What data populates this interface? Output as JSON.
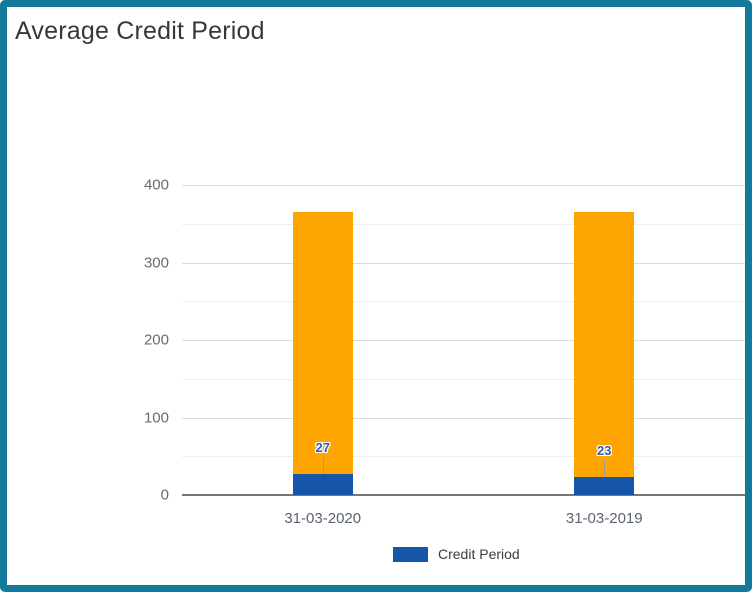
{
  "header": {
    "title": "Average Credit Period"
  },
  "colors": {
    "frame_border": "#147A9C",
    "title_text": "#37373F",
    "bar_orange": "#FFA502",
    "bar_blue": "#1556A8",
    "axis_line": "#777777",
    "gridline_major": "#DCDCDC",
    "gridline_minor": "#EFEFEF",
    "y_tick_label": "#6B6B70",
    "x_tick_label": "#5A6273",
    "data_label_text": "#2F5FB0",
    "data_label_halo": "#FFFFFF",
    "leader_line": "#9A9A9A",
    "legend_text": "#3D3D3D"
  },
  "chart_data": {
    "type": "bar",
    "stacked": true,
    "title": "Average Credit Period",
    "categories": [
      "31-03-2020",
      "31-03-2019"
    ],
    "series": [
      {
        "name": "Credit Period",
        "color_key": "bar_blue",
        "values": [
          27,
          23
        ],
        "data_labels": [
          "27",
          "23"
        ],
        "in_legend": true
      },
      {
        "name": "",
        "color_key": "bar_orange",
        "values": [
          338,
          342
        ],
        "data_labels": [],
        "in_legend": false
      }
    ],
    "stack_totals": [
      365,
      365
    ],
    "xlabel": "",
    "ylabel": "",
    "ylim": [
      0,
      400
    ],
    "y_major_ticks": [
      0,
      100,
      200,
      300,
      400
    ],
    "y_minor_ticks": [
      50,
      150,
      250,
      350
    ],
    "grid": true,
    "legend": {
      "position": "bottom-center",
      "items": [
        {
          "label": "Credit Period",
          "color_key": "bar_blue"
        }
      ]
    }
  }
}
